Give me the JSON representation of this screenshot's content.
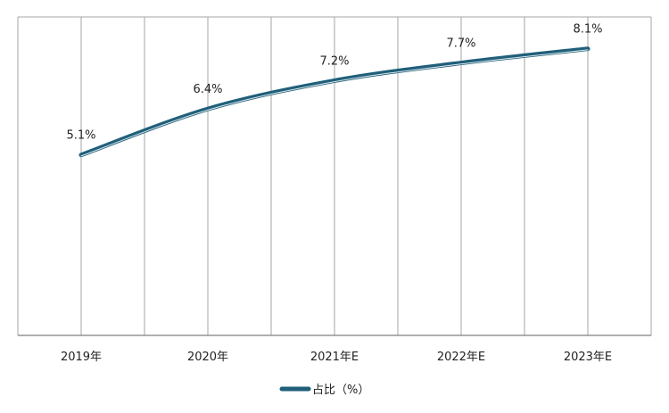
{
  "chart_data": {
    "type": "line",
    "categories": [
      "2019年",
      "2020年",
      "2021年E",
      "2022年E",
      "2023年E"
    ],
    "series": [
      {
        "name": "占比（%）",
        "values": [
          5.1,
          6.4,
          7.2,
          7.7,
          8.1
        ]
      }
    ],
    "data_labels": [
      "5.1%",
      "6.4%",
      "7.2%",
      "7.7%",
      "8.1%"
    ],
    "title": "",
    "xlabel": "",
    "ylabel": "",
    "ylim": [
      0,
      9
    ],
    "grid": "vertical",
    "legend": "bottom-center",
    "colors": {
      "line": "#1f5f7a",
      "grid": "#a6a6a6",
      "axis": "#7f7f7f"
    }
  }
}
